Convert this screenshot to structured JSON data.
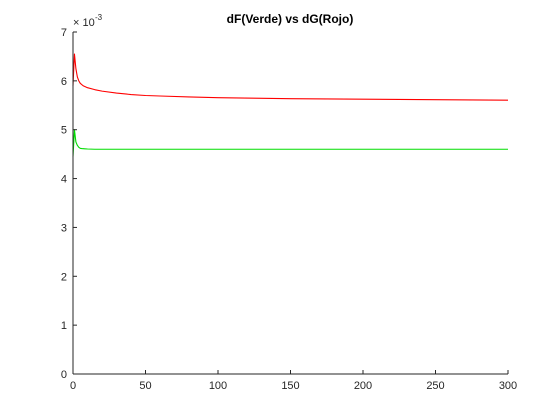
{
  "chart_data": {
    "type": "line",
    "title": "dF(Verde) vs dG(Rojo)",
    "xlabel": "",
    "ylabel": "",
    "xlim": [
      0,
      300
    ],
    "ylim": [
      0,
      7
    ],
    "y_scale_exponent_label": "× 10",
    "y_scale_exponent": "-3",
    "x_ticks": [
      0,
      50,
      100,
      150,
      200,
      250,
      300
    ],
    "y_ticks": [
      0,
      1,
      2,
      3,
      4,
      5,
      6,
      7
    ],
    "x_tick_labels": [
      "0",
      "50",
      "100",
      "150",
      "200",
      "250",
      "300"
    ],
    "y_tick_labels": [
      "0",
      "1",
      "2",
      "3",
      "4",
      "5",
      "6",
      "7"
    ],
    "grid": false,
    "legend": "none",
    "series": [
      {
        "color": "#ff0000",
        "x": [
          0,
          1,
          2,
          3,
          4,
          5,
          7,
          10,
          15,
          20,
          30,
          40,
          50,
          60,
          80,
          100,
          125,
          150,
          175,
          200,
          225,
          250,
          275,
          300
        ],
        "y": [
          5.9,
          6.55,
          6.25,
          6.08,
          6.0,
          5.95,
          5.9,
          5.86,
          5.82,
          5.79,
          5.75,
          5.72,
          5.7,
          5.69,
          5.67,
          5.655,
          5.645,
          5.635,
          5.63,
          5.625,
          5.62,
          5.615,
          5.61,
          5.605
        ]
      },
      {
        "color": "#00dd00",
        "x": [
          0,
          1,
          2,
          3,
          4,
          5,
          6,
          8,
          10,
          15,
          20,
          50,
          100,
          150,
          200,
          250,
          300
        ],
        "y": [
          4.45,
          5.0,
          4.75,
          4.68,
          4.64,
          4.62,
          4.615,
          4.61,
          4.605,
          4.6,
          4.6,
          4.6,
          4.6,
          4.6,
          4.6,
          4.6,
          4.6
        ]
      },
      {
        "color": "#cc0000",
        "x": [
          0,
          300
        ],
        "y": [
          0.0,
          0.0
        ]
      }
    ]
  }
}
